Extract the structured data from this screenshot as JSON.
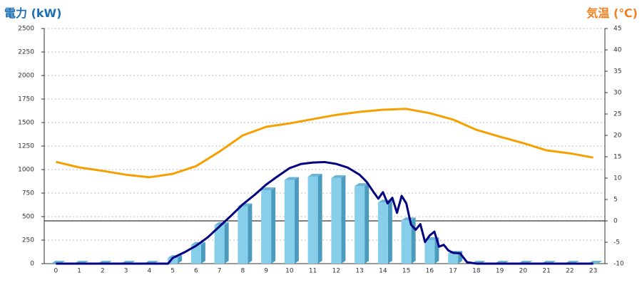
{
  "chart_data": {
    "type": "bar",
    "title_left": "電力 (kW)",
    "title_right": "気温 (℃)",
    "categories": [
      "0",
      "1",
      "2",
      "3",
      "4",
      "5",
      "6",
      "7",
      "8",
      "9",
      "10",
      "11",
      "12",
      "13",
      "14",
      "15",
      "16",
      "17",
      "18",
      "19",
      "20",
      "21",
      "22",
      "23"
    ],
    "ylim": [
      0,
      2500
    ],
    "yticks": [
      0,
      250,
      500,
      750,
      1000,
      1250,
      1500,
      1750,
      2000,
      2250,
      2500
    ],
    "y2lim": [
      -10,
      45
    ],
    "y2ticks": [
      -10,
      -5,
      0,
      5,
      10,
      15,
      20,
      25,
      30,
      35,
      40,
      45
    ],
    "grid": true,
    "series": [
      {
        "type": "bar",
        "color": "#87ceeb",
        "values": [
          0,
          0,
          0,
          0,
          0,
          60,
          200,
          410,
          610,
          780,
          890,
          925,
          910,
          825,
          650,
          460,
          250,
          105,
          0,
          0,
          0,
          0,
          0,
          0
        ]
      },
      {
        "type": "line",
        "color": "#000080",
        "x": [
          0,
          1,
          2,
          3,
          4,
          4.8,
          5,
          5.5,
          6,
          6.5,
          7,
          7.5,
          8,
          8.5,
          9,
          9.5,
          10,
          10.5,
          11,
          11.5,
          12,
          12.5,
          13,
          13.3,
          13.6,
          13.8,
          14,
          14.2,
          14.4,
          14.6,
          14.8,
          15,
          15.2,
          15.4,
          15.6,
          15.8,
          16,
          16.2,
          16.4,
          16.6,
          16.8,
          17,
          17.3,
          17.6,
          18,
          19,
          20,
          21,
          22,
          23
        ],
        "values": [
          0,
          0,
          0,
          0,
          0,
          0,
          60,
          120,
          190,
          280,
          395,
          510,
          630,
          730,
          840,
          930,
          1015,
          1060,
          1075,
          1080,
          1060,
          1020,
          945,
          870,
          760,
          690,
          760,
          640,
          700,
          540,
          720,
          640,
          415,
          360,
          420,
          230,
          300,
          340,
          180,
          200,
          140,
          115,
          110,
          15,
          0,
          0,
          0,
          0,
          0,
          0
        ]
      },
      {
        "type": "line",
        "axis": "y2",
        "color": "#f5a000",
        "values": [
          13.8,
          12.5,
          11.7,
          10.8,
          10.2,
          11,
          12.8,
          16.2,
          20,
          22,
          22.8,
          23.8,
          24.8,
          25.5,
          26,
          26.2,
          25.2,
          23.7,
          21.3,
          19.7,
          18.2,
          16.5,
          15.8,
          14.8
        ]
      }
    ]
  }
}
